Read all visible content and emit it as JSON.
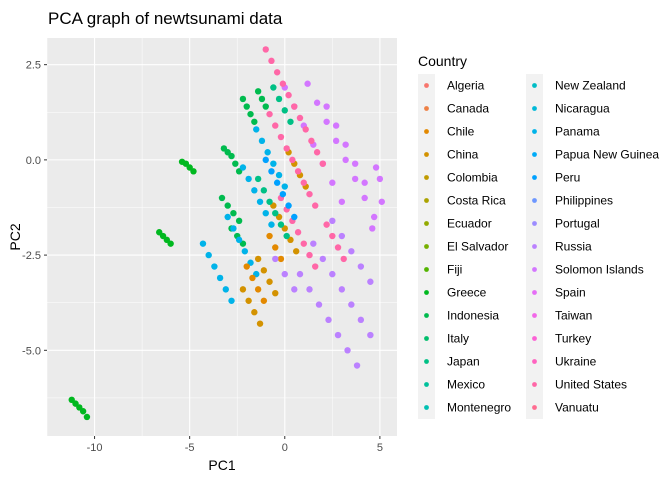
{
  "chart_data": {
    "type": "scatter",
    "title": "PCA graph of newtsunami data",
    "xlabel": "PC1",
    "ylabel": "PC2",
    "xlim": [
      -12.5,
      5.9
    ],
    "ylim": [
      -7.25,
      3.2
    ],
    "x_ticks": [
      {
        "value": -10,
        "label": "-10"
      },
      {
        "value": -5,
        "label": "-5"
      },
      {
        "value": 0,
        "label": "0"
      },
      {
        "value": 5,
        "label": "5"
      }
    ],
    "y_ticks": [
      {
        "value": 2.5,
        "label": "2.5"
      },
      {
        "value": 0,
        "label": "0.0"
      },
      {
        "value": -2.5,
        "label": "-2.5"
      },
      {
        "value": -5,
        "label": "-5.0"
      }
    ],
    "grid": true,
    "legend_position": "right",
    "legend": {
      "title": "Country",
      "entries": [
        {
          "name": "Algeria",
          "color": "#F8766D"
        },
        {
          "name": "Canada",
          "color": "#EE8045"
        },
        {
          "name": "Chile",
          "color": "#E38900"
        },
        {
          "name": "China",
          "color": "#D39200"
        },
        {
          "name": "Colombia",
          "color": "#C09B00"
        },
        {
          "name": "Costa Rica",
          "color": "#ABA300"
        },
        {
          "name": "Ecuador",
          "color": "#93AA00"
        },
        {
          "name": "El Salvador",
          "color": "#77B000"
        },
        {
          "name": "Fiji",
          "color": "#53B400"
        },
        {
          "name": "Greece",
          "color": "#00B81F"
        },
        {
          "name": "Indonesia",
          "color": "#00BB4E"
        },
        {
          "name": "Italy",
          "color": "#00BE6C"
        },
        {
          "name": "Japan",
          "color": "#00C085"
        },
        {
          "name": "Mexico",
          "color": "#00C19C"
        },
        {
          "name": "Montenegro",
          "color": "#00C0B2"
        },
        {
          "name": "New Zealand",
          "color": "#00BDC6"
        },
        {
          "name": "Nicaragua",
          "color": "#00B9D8"
        },
        {
          "name": "Panama",
          "color": "#00B3E9"
        },
        {
          "name": "Papua New Guinea",
          "color": "#00ABF8"
        },
        {
          "name": "Peru",
          "color": "#00A1FF"
        },
        {
          "name": "Philippines",
          "color": "#6D97FF"
        },
        {
          "name": "Portugal",
          "color": "#9C8CFF"
        },
        {
          "name": "Russia",
          "color": "#BB81FF"
        },
        {
          "name": "Solomon Islands",
          "color": "#D376FF"
        },
        {
          "name": "Spain",
          "color": "#E56EF6"
        },
        {
          "name": "Taiwan",
          "color": "#F268E8"
        },
        {
          "name": "Turkey",
          "color": "#FC61D5"
        },
        {
          "name": "Ukraine",
          "color": "#FF63C0"
        },
        {
          "name": "United States",
          "color": "#FF67A7"
        },
        {
          "name": "Vanuatu",
          "color": "#FF6C90"
        }
      ]
    },
    "series": [
      {
        "name": "Greece",
        "color": "#00B81F",
        "points": [
          [
            -11.2,
            -6.3
          ],
          [
            -11.0,
            -6.4
          ],
          [
            -10.8,
            -6.5
          ],
          [
            -10.6,
            -6.6
          ],
          [
            -10.4,
            -6.75
          ],
          [
            -6.6,
            -1.9
          ],
          [
            -6.4,
            -2.0
          ],
          [
            -6.2,
            -2.1
          ],
          [
            -6.0,
            -2.2
          ],
          [
            -5.4,
            -0.05
          ],
          [
            -5.2,
            -0.1
          ],
          [
            -5.0,
            -0.2
          ],
          [
            -4.8,
            -0.3
          ]
        ]
      },
      {
        "name": "Indonesia",
        "color": "#00BB4E",
        "points": [
          [
            -3.2,
            0.3
          ],
          [
            -3.0,
            0.2
          ],
          [
            -2.8,
            0.1
          ],
          [
            -2.6,
            -0.1
          ],
          [
            -2.4,
            -0.3
          ],
          [
            -3.3,
            -1.0
          ],
          [
            -3.0,
            -1.2
          ],
          [
            -2.7,
            -1.4
          ],
          [
            -2.4,
            -1.6
          ],
          [
            -2.2,
            1.6
          ],
          [
            -2.0,
            1.4
          ],
          [
            -1.8,
            1.2
          ],
          [
            -1.6,
            1.0
          ],
          [
            -2.8,
            -1.8
          ],
          [
            -2.5,
            -2.0
          ],
          [
            -2.2,
            -2.2
          ],
          [
            -1.4,
            1.8
          ],
          [
            -1.2,
            1.6
          ],
          [
            -1.0,
            1.4
          ]
        ]
      },
      {
        "name": "Panama",
        "color": "#00B3E9",
        "points": [
          [
            -4.3,
            -2.2
          ],
          [
            -4.0,
            -2.5
          ],
          [
            -3.7,
            -2.8
          ],
          [
            -3.4,
            -3.1
          ],
          [
            -3.1,
            -3.4
          ],
          [
            -2.8,
            -3.7
          ],
          [
            -3.0,
            -1.5
          ],
          [
            -2.7,
            -1.8
          ],
          [
            -2.4,
            -2.1
          ],
          [
            -2.1,
            -2.4
          ],
          [
            -1.8,
            -2.7
          ],
          [
            -1.5,
            -3.0
          ],
          [
            -2.2,
            -0.2
          ],
          [
            -1.9,
            -0.5
          ],
          [
            -1.6,
            -0.8
          ],
          [
            -1.3,
            -1.1
          ],
          [
            -1.0,
            -1.4
          ],
          [
            -0.7,
            -1.7
          ],
          [
            -1.5,
            0.8
          ],
          [
            -1.2,
            0.5
          ],
          [
            -0.9,
            0.2
          ],
          [
            -0.6,
            -0.1
          ],
          [
            -0.3,
            -0.4
          ],
          [
            0.0,
            -0.7
          ]
        ]
      },
      {
        "name": "China",
        "color": "#D39200",
        "points": [
          [
            -2.2,
            -3.4
          ],
          [
            -1.9,
            -3.7
          ],
          [
            -1.6,
            -4.0
          ],
          [
            -1.3,
            -4.3
          ],
          [
            -1.4,
            -2.6
          ],
          [
            -1.1,
            -2.9
          ],
          [
            -0.8,
            -3.2
          ],
          [
            -0.5,
            -3.5
          ],
          [
            -0.6,
            -1.2
          ],
          [
            -0.3,
            -1.5
          ],
          [
            0.0,
            -1.8
          ],
          [
            0.3,
            -2.1
          ],
          [
            0.6,
            -2.4
          ],
          [
            0.2,
            0.2
          ],
          [
            0.5,
            -0.1
          ],
          [
            0.8,
            -0.4
          ],
          [
            1.1,
            -0.7
          ]
        ]
      },
      {
        "name": "Chile",
        "color": "#E38900",
        "points": [
          [
            -2.0,
            -2.8
          ],
          [
            -1.7,
            -3.1
          ],
          [
            -1.4,
            -3.4
          ],
          [
            -1.1,
            -3.7
          ],
          [
            -0.8,
            -2.0
          ],
          [
            -0.5,
            -2.3
          ],
          [
            -0.2,
            -2.6
          ]
        ]
      },
      {
        "name": "Solomon Islands",
        "color": "#D376FF",
        "points": [
          [
            0.0,
            1.9
          ],
          [
            0.5,
            1.4
          ],
          [
            1.0,
            0.9
          ],
          [
            1.5,
            0.4
          ],
          [
            2.0,
            -0.1
          ],
          [
            2.5,
            -0.6
          ],
          [
            3.0,
            -1.1
          ],
          [
            1.2,
            2.0
          ],
          [
            1.7,
            1.5
          ],
          [
            2.2,
            1.0
          ],
          [
            2.7,
            0.5
          ],
          [
            3.2,
            0.0
          ],
          [
            3.7,
            -0.5
          ],
          [
            4.2,
            -1.0
          ],
          [
            4.7,
            -1.5
          ],
          [
            2.2,
            1.4
          ],
          [
            2.7,
            0.9
          ],
          [
            3.2,
            0.4
          ],
          [
            3.7,
            -0.1
          ],
          [
            4.2,
            -0.6
          ],
          [
            4.6,
            -1.8
          ],
          [
            4.8,
            -0.2
          ],
          [
            5.0,
            -0.5
          ],
          [
            5.1,
            -1.1
          ]
        ]
      },
      {
        "name": "Russia",
        "color": "#BB81FF",
        "points": [
          [
            0.8,
            -3.0
          ],
          [
            1.3,
            -3.4
          ],
          [
            1.8,
            -3.8
          ],
          [
            2.3,
            -4.2
          ],
          [
            2.8,
            -4.6
          ],
          [
            3.3,
            -5.0
          ],
          [
            3.8,
            -5.4
          ],
          [
            1.5,
            -2.2
          ],
          [
            2.0,
            -2.6
          ],
          [
            2.5,
            -3.0
          ],
          [
            3.0,
            -3.4
          ],
          [
            3.5,
            -3.8
          ],
          [
            4.0,
            -4.2
          ],
          [
            4.5,
            -4.6
          ],
          [
            2.5,
            -1.6
          ],
          [
            3.0,
            -2.0
          ],
          [
            3.5,
            -2.4
          ],
          [
            4.0,
            -2.8
          ],
          [
            4.5,
            -3.2
          ],
          [
            -0.5,
            -2.6
          ],
          [
            0.0,
            -3.0
          ],
          [
            0.5,
            -3.4
          ]
        ]
      },
      {
        "name": "United States",
        "color": "#FF67A7",
        "points": [
          [
            -1.0,
            2.9
          ],
          [
            -0.7,
            2.6
          ],
          [
            -0.4,
            2.3
          ],
          [
            -0.1,
            2.0
          ],
          [
            0.2,
            1.7
          ],
          [
            0.5,
            1.4
          ],
          [
            0.8,
            1.1
          ],
          [
            1.1,
            0.8
          ],
          [
            1.4,
            0.5
          ],
          [
            1.7,
            0.2
          ],
          [
            2.0,
            -0.1
          ],
          [
            -0.8,
            1.2
          ],
          [
            -0.5,
            0.9
          ],
          [
            -0.2,
            0.6
          ],
          [
            0.1,
            0.3
          ],
          [
            0.4,
            0.0
          ],
          [
            0.7,
            -0.3
          ],
          [
            1.0,
            -0.6
          ],
          [
            1.3,
            -0.9
          ],
          [
            1.6,
            -1.2
          ],
          [
            -0.2,
            -1.0
          ],
          [
            0.1,
            -1.3
          ],
          [
            0.4,
            -1.6
          ],
          [
            0.7,
            -1.9
          ],
          [
            1.0,
            -2.2
          ],
          [
            1.3,
            -2.5
          ],
          [
            1.6,
            -2.8
          ],
          [
            2.2,
            -1.7
          ],
          [
            2.5,
            -2.0
          ],
          [
            2.8,
            -2.3
          ],
          [
            3.1,
            -2.6
          ]
        ]
      },
      {
        "name": "Japan",
        "color": "#00C085",
        "points": [
          [
            -1.4,
            -0.5
          ],
          [
            -1.1,
            -0.8
          ],
          [
            -0.8,
            -1.1
          ],
          [
            -0.5,
            -1.4
          ],
          [
            -0.2,
            -1.7
          ],
          [
            0.1,
            -2.0
          ],
          [
            -0.6,
            1.9
          ],
          [
            -0.3,
            1.6
          ],
          [
            0.0,
            1.3
          ],
          [
            0.3,
            1.0
          ]
        ]
      },
      {
        "name": "Peru",
        "color": "#00A1FF",
        "points": [
          [
            -1.0,
            0.0
          ],
          [
            -0.7,
            -0.3
          ],
          [
            -0.4,
            -0.6
          ],
          [
            -0.1,
            -0.9
          ],
          [
            0.2,
            -1.2
          ],
          [
            0.5,
            -1.5
          ]
        ]
      }
    ]
  }
}
